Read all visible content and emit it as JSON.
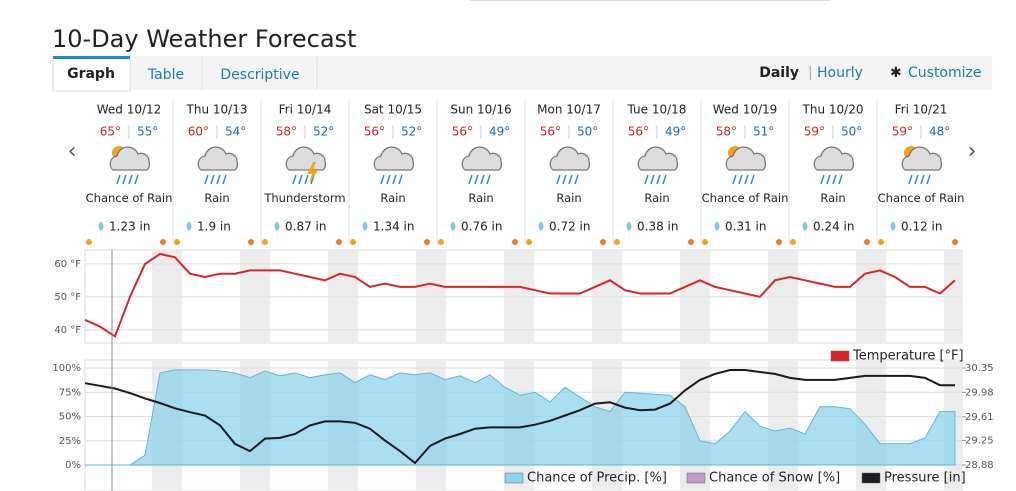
{
  "header": {
    "title": "10-Day Weather Forecast"
  },
  "tabs": [
    "Graph",
    "Table",
    "Descriptive"
  ],
  "view": {
    "daily": "Daily",
    "hourly": "Hourly",
    "customize": "Customize"
  },
  "days": [
    {
      "date": "Wed 10/12",
      "hi": "65°",
      "lo": "55°",
      "condition": "Chance of Rain",
      "precip": "1.23 in"
    },
    {
      "date": "Thu 10/13",
      "hi": "60°",
      "lo": "54°",
      "condition": "Rain",
      "precip": "1.9 in"
    },
    {
      "date": "Fri 10/14",
      "hi": "58°",
      "lo": "52°",
      "condition": "Thunderstorm",
      "precip": "0.87 in"
    },
    {
      "date": "Sat 10/15",
      "hi": "56°",
      "lo": "52°",
      "condition": "Rain",
      "precip": "1.34 in"
    },
    {
      "date": "Sun 10/16",
      "hi": "56°",
      "lo": "49°",
      "condition": "Rain",
      "precip": "0.76 in"
    },
    {
      "date": "Mon 10/17",
      "hi": "56°",
      "lo": "50°",
      "condition": "Rain",
      "precip": "0.72 in"
    },
    {
      "date": "Tue 10/18",
      "hi": "56°",
      "lo": "49°",
      "condition": "Rain",
      "precip": "0.38 in"
    },
    {
      "date": "Wed 10/19",
      "hi": "58°",
      "lo": "51°",
      "condition": "Chance of Rain",
      "precip": "0.31 in"
    },
    {
      "date": "Thu 10/20",
      "hi": "59°",
      "lo": "50°",
      "condition": "Rain",
      "precip": "0.24 in"
    },
    {
      "date": "Fri 10/21",
      "hi": "59°",
      "lo": "48°",
      "condition": "Chance of Rain",
      "precip": "0.12 in"
    }
  ],
  "chart_data": [
    {
      "type": "line",
      "ylim": [
        36,
        64.2
      ],
      "yticks": [
        {
          "value": 40,
          "label": "40 °F"
        },
        {
          "value": 50,
          "label": "50 °F"
        },
        {
          "value": 60,
          "label": "60 °F"
        }
      ],
      "series": [
        {
          "name": "Temperature [°F]",
          "color": "#d9262b",
          "values": [
            43,
            41,
            38,
            50,
            60,
            63,
            62,
            57,
            56,
            57,
            57,
            58,
            58,
            58,
            57,
            56,
            55,
            57,
            56,
            53,
            54,
            53,
            53,
            54,
            53,
            53,
            53,
            53,
            53,
            53,
            52,
            51,
            51,
            51,
            53,
            55,
            52,
            51,
            51,
            51,
            53,
            55,
            53,
            52,
            51,
            50,
            55,
            56,
            55,
            54,
            53,
            53,
            57,
            58,
            56,
            53,
            53,
            51,
            55
          ]
        }
      ]
    },
    {
      "type": "area",
      "ylim": [
        0,
        100
      ],
      "y2lim": [
        28.88,
        30.35
      ],
      "yticks": [
        {
          "value": 0,
          "label": "0%"
        },
        {
          "value": 25,
          "label": "25%"
        },
        {
          "value": 50,
          "label": "50%"
        },
        {
          "value": 75,
          "label": "75%"
        },
        {
          "value": 100,
          "label": "100%"
        }
      ],
      "y2ticks": [
        28.88,
        29.25,
        29.61,
        29.98,
        30.35
      ],
      "series": [
        {
          "name": "Chance of Precip. [%]",
          "color": "#8fd3ea",
          "values": [
            0,
            0,
            0,
            0,
            10,
            95,
            98,
            98,
            98,
            97,
            95,
            90,
            97,
            92,
            95,
            90,
            93,
            95,
            85,
            93,
            88,
            95,
            93,
            95,
            88,
            92,
            85,
            93,
            80,
            72,
            75,
            65,
            80,
            70,
            60,
            55,
            75,
            74,
            73,
            72,
            60,
            25,
            22,
            35,
            55,
            40,
            35,
            38,
            32,
            60,
            60,
            58,
            42,
            22,
            22,
            22,
            28,
            55,
            55
          ]
        },
        {
          "name": "Chance of Snow [%]",
          "color": "#c39bc9"
        },
        {
          "name": "Pressure [in]",
          "color": "#1a1a1a",
          "type": "line",
          "axis": "y2",
          "values": [
            30.12,
            30.08,
            30.04,
            29.97,
            29.89,
            29.82,
            29.74,
            29.68,
            29.63,
            29.48,
            29.2,
            29.09,
            29.28,
            29.29,
            29.35,
            29.48,
            29.54,
            29.54,
            29.52,
            29.43,
            29.25,
            29.09,
            28.91,
            29.17,
            29.28,
            29.35,
            29.43,
            29.45,
            29.45,
            29.45,
            29.49,
            29.55,
            29.63,
            29.71,
            29.81,
            29.83,
            29.75,
            29.71,
            29.72,
            29.81,
            30.01,
            30.17,
            30.26,
            30.32,
            30.32,
            30.29,
            30.26,
            30.2,
            30.17,
            30.17,
            30.17,
            30.2,
            30.23,
            30.23,
            30.23,
            30.23,
            30.2,
            30.09,
            30.09
          ]
        }
      ]
    }
  ]
}
